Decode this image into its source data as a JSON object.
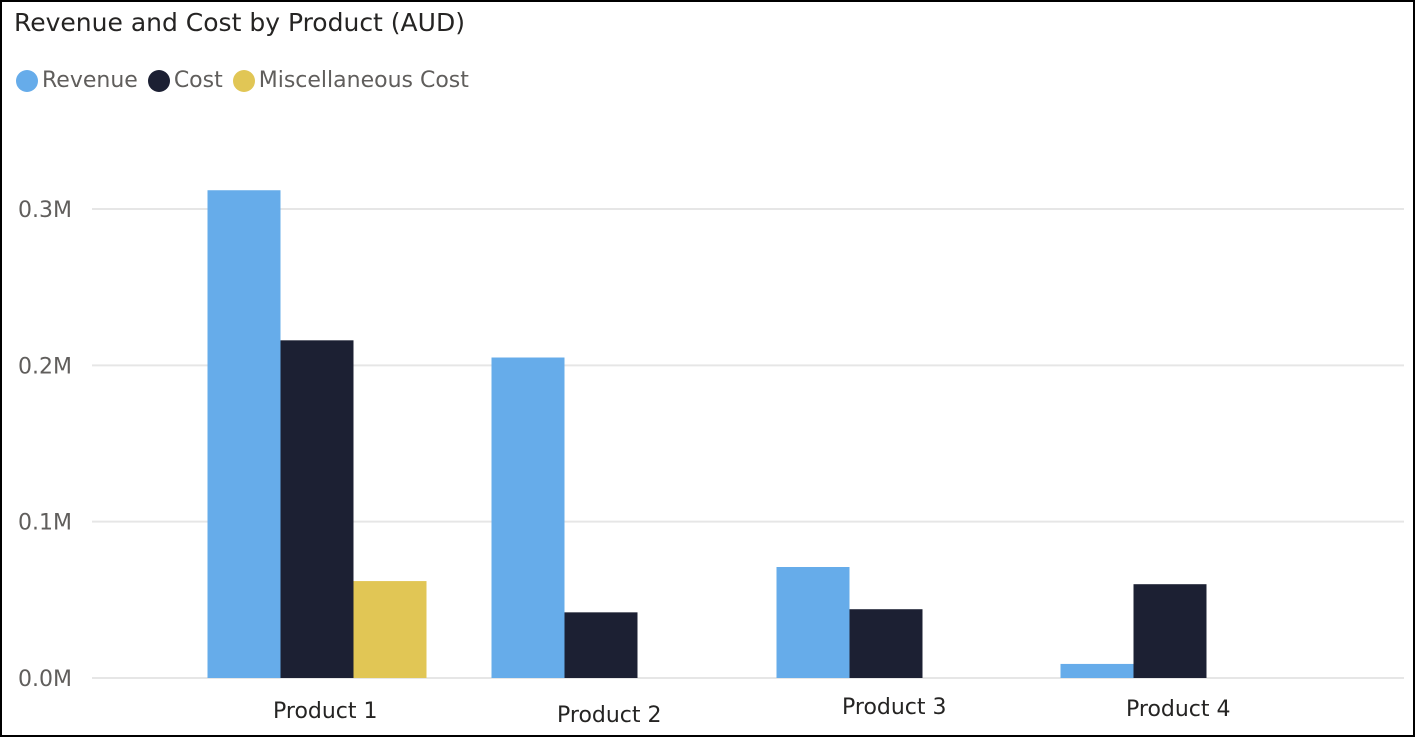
{
  "chart_data": {
    "type": "bar",
    "title": "Revenue and Cost by Product (AUD)",
    "xlabel": "",
    "ylabel": "",
    "categories": [
      "Product 1",
      "Product 2",
      "Product 3",
      "Product 4"
    ],
    "series": [
      {
        "name": "Revenue",
        "color": "#66acea",
        "values": [
          0.312,
          0.205,
          0.071,
          0.009
        ]
      },
      {
        "name": "Cost",
        "color": "#1c2033",
        "values": [
          0.216,
          0.042,
          0.044,
          0.06
        ]
      },
      {
        "name": "Miscellaneous Cost",
        "color": "#e1c655",
        "values": [
          0.062,
          null,
          null,
          null
        ]
      }
    ],
    "yticks": [
      0,
      0.1,
      0.2,
      0.3
    ],
    "ytick_labels": [
      "0.0M",
      "0.1M",
      "0.2M",
      "0.3M"
    ],
    "ylim": [
      0,
      0.3
    ],
    "grid": true,
    "legend": "top-left"
  }
}
